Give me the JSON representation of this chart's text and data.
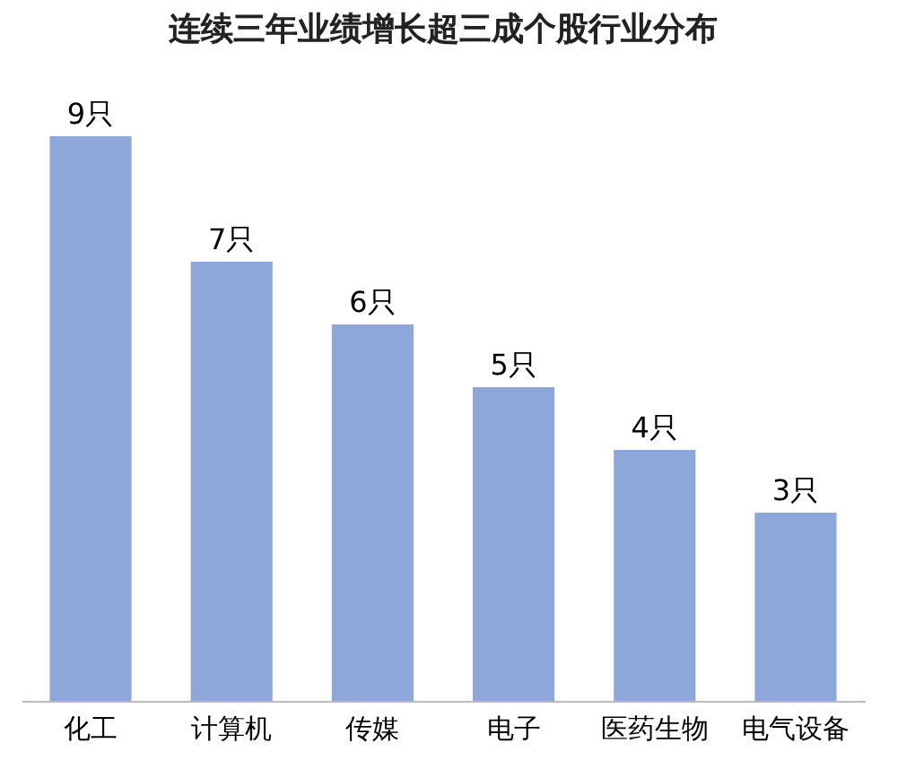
{
  "chart_data": {
    "type": "bar",
    "title": "连续三年业绩增长超三成个股行业分布",
    "categories": [
      "化工",
      "计算机",
      "传媒",
      "电子",
      "医药生物",
      "电气设备"
    ],
    "values": [
      9,
      7,
      6,
      5,
      4,
      3
    ],
    "value_labels": [
      "9只",
      "7只",
      "6只",
      "5只",
      "4只",
      "3只"
    ],
    "color": "#8ea7da"
  }
}
